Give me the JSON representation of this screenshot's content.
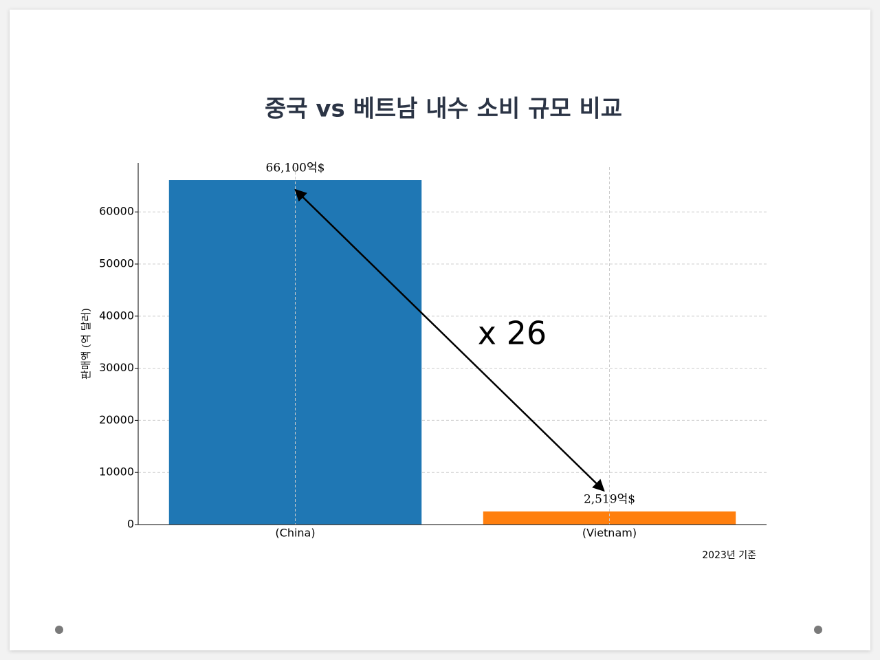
{
  "chart_data": {
    "type": "bar",
    "title": "중국 vs 베트남 내수 소비 규모 비교",
    "y_label": "판매액 (억 달러)",
    "categories": [
      "(China)",
      "(Vietnam)"
    ],
    "values": [
      66100,
      2519
    ],
    "value_labels": [
      "66,100억$",
      "2,519억$"
    ],
    "colors": [
      "#1f77b4",
      "#ff7f0e"
    ],
    "ylim": [
      0,
      69400
    ],
    "yticks": [
      0,
      10000,
      20000,
      30000,
      40000,
      50000,
      60000
    ],
    "grid": true,
    "annotation": "x 26",
    "note": "2023년 기준"
  }
}
